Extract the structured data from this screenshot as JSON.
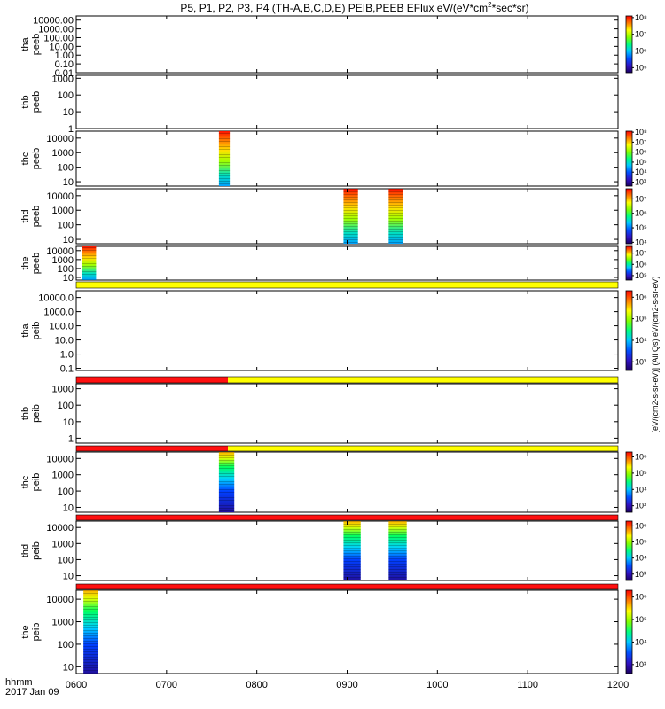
{
  "chart_data": {
    "type": "heatmap",
    "title": "P5, P1, P2, P3, P4 (TH-A,B,C,D,E) PEIB,PEEB EFlux eV/(eV*cm^2*sec*sr)",
    "title_parts": {
      "pre": "P5, P1, P2, P3, P4 (TH-A,B,C,D,E) PEIB,PEEB EFlux eV/(eV*cm",
      "sup": "2",
      "post": "*sec*sr)"
    },
    "xaxis": {
      "label": "hhmm",
      "date": "2017 Jan 09",
      "range": [
        600,
        1200
      ],
      "ticks": [
        600,
        700,
        800,
        900,
        1000,
        1100,
        1200
      ],
      "tick_labels": [
        "0600",
        "0700",
        "0800",
        "0900",
        "1000",
        "1100",
        "1200"
      ]
    },
    "colorbar_label": "[eV/(cm2-s-sr-eV)] (All Qs) eV/(cm2-s-sr-eV)",
    "panels": [
      {
        "probe": "tha",
        "instrument": "peeb",
        "yscale": "log",
        "ylim": [
          0.01,
          30000
        ],
        "yticks": [
          0.01,
          0.1,
          1,
          10,
          100,
          1000,
          10000
        ],
        "ytick_labels": [
          "0.01",
          "0.10",
          "1.00",
          "10.00",
          "100.00",
          "1000.00",
          "10000.00"
        ],
        "cbar_ticks": [
          "10⁵",
          "10⁶",
          "10⁷",
          "10⁸"
        ],
        "cbar_range": [
          4.7,
          8.1
        ],
        "data_intervals": [],
        "bar": null
      },
      {
        "probe": "thb",
        "instrument": "peeb",
        "yscale": "log",
        "ylim": [
          1,
          1500
        ],
        "yticks": [
          1,
          10,
          100,
          1000
        ],
        "ytick_labels": [
          "1",
          "10",
          "100",
          "1000"
        ],
        "cbar_ticks": [],
        "cbar_range": null,
        "data_intervals": [],
        "bar": null
      },
      {
        "probe": "thc",
        "instrument": "peeb",
        "yscale": "log",
        "ylim": [
          5,
          30000
        ],
        "yticks": [
          10,
          100,
          1000,
          10000
        ],
        "ytick_labels": [
          "10",
          "100",
          "1000",
          "10000"
        ],
        "cbar_ticks": [
          "10³",
          "10⁴",
          "10⁵",
          "10⁶",
          "10⁷",
          "10⁸"
        ],
        "cbar_range": [
          2.6,
          8.1
        ],
        "data_intervals": [
          {
            "start": 758,
            "end": 770
          }
        ],
        "bar": null
      },
      {
        "probe": "thd",
        "instrument": "peeb",
        "yscale": "log",
        "ylim": [
          5,
          30000
        ],
        "yticks": [
          10,
          100,
          1000,
          10000
        ],
        "ytick_labels": [
          "10",
          "100",
          "1000",
          "10000"
        ],
        "cbar_ticks": [
          "10⁴",
          "10⁵",
          "10⁶",
          "10⁷"
        ],
        "cbar_range": [
          3.9,
          7.7
        ],
        "data_intervals": [
          {
            "start": 896,
            "end": 912
          },
          {
            "start": 946,
            "end": 962
          }
        ],
        "bar": null
      },
      {
        "probe": "the",
        "instrument": "peeb",
        "yscale": "log",
        "ylim": [
          5,
          30000
        ],
        "yticks": [
          10,
          100,
          1000,
          10000
        ],
        "ytick_labels": [
          "10",
          "100",
          "1000",
          "10000"
        ],
        "cbar_ticks": [
          "10⁵",
          "10⁶",
          "10⁷"
        ],
        "cbar_range": [
          4.6,
          7.6
        ],
        "data_intervals": [
          {
            "start": 606,
            "end": 622
          }
        ],
        "bar": null
      },
      {
        "probe": "tha",
        "instrument": "peib",
        "yscale": "log",
        "ylim": [
          0.07,
          30000
        ],
        "yticks": [
          0.1,
          1,
          10,
          100,
          1000,
          10000
        ],
        "ytick_labels": [
          "0.1",
          "1.0",
          "10.0",
          "100.0",
          "1000.0",
          "10000.0"
        ],
        "cbar_ticks": [
          "10³",
          "10⁴",
          "10⁵",
          "10⁶"
        ],
        "cbar_range": [
          2.6,
          6.3
        ],
        "data_intervals": [],
        "bar": [
          {
            "start": 600,
            "end": 1200,
            "color": "#ffff00"
          }
        ]
      },
      {
        "probe": "thb",
        "instrument": "peib",
        "yscale": "log",
        "ylim": [
          0.5,
          2000
        ],
        "yticks": [
          1,
          10,
          100,
          1000
        ],
        "ytick_labels": [
          "1",
          "10",
          "100",
          "1000"
        ],
        "cbar_ticks": [],
        "cbar_range": null,
        "data_intervals": [],
        "bar": [
          {
            "start": 600,
            "end": 768,
            "color": "#ff1010"
          },
          {
            "start": 768,
            "end": 1200,
            "color": "#ffff00"
          }
        ]
      },
      {
        "probe": "thc",
        "instrument": "peib",
        "yscale": "log",
        "ylim": [
          5,
          25000
        ],
        "yticks": [
          10,
          100,
          1000,
          10000
        ],
        "ytick_labels": [
          "10",
          "100",
          "1000",
          "10000"
        ],
        "cbar_ticks": [
          "10³",
          "10⁴",
          "10⁵",
          "10⁶"
        ],
        "cbar_range": [
          2.6,
          6.3
        ],
        "data_intervals": [
          {
            "start": 758,
            "end": 775
          }
        ],
        "bar": [
          {
            "start": 600,
            "end": 768,
            "color": "#ff1010"
          },
          {
            "start": 768,
            "end": 1200,
            "color": "#ffff00"
          }
        ]
      },
      {
        "probe": "thd",
        "instrument": "peib",
        "yscale": "log",
        "ylim": [
          5,
          25000
        ],
        "yticks": [
          10,
          100,
          1000,
          10000
        ],
        "ytick_labels": [
          "10",
          "100",
          "1000",
          "10000"
        ],
        "cbar_ticks": [
          "10³",
          "10⁴",
          "10⁵",
          "10⁶"
        ],
        "cbar_range": [
          2.6,
          6.3
        ],
        "data_intervals": [
          {
            "start": 896,
            "end": 915
          },
          {
            "start": 946,
            "end": 966
          }
        ],
        "bar": [
          {
            "start": 600,
            "end": 1200,
            "color": "#ff1010"
          }
        ]
      },
      {
        "probe": "the",
        "instrument": "peib",
        "yscale": "log",
        "ylim": [
          5,
          25000
        ],
        "yticks": [
          10,
          100,
          1000,
          10000
        ],
        "ytick_labels": [
          "10",
          "100",
          "1000",
          "10000"
        ],
        "cbar_ticks": [
          "10³",
          "10⁴",
          "10⁵",
          "10⁶"
        ],
        "cbar_range": [
          2.6,
          6.3
        ],
        "data_intervals": [
          {
            "start": 608,
            "end": 624
          }
        ],
        "bar": [
          {
            "start": 600,
            "end": 1200,
            "color": "#ff1010"
          }
        ]
      }
    ]
  }
}
